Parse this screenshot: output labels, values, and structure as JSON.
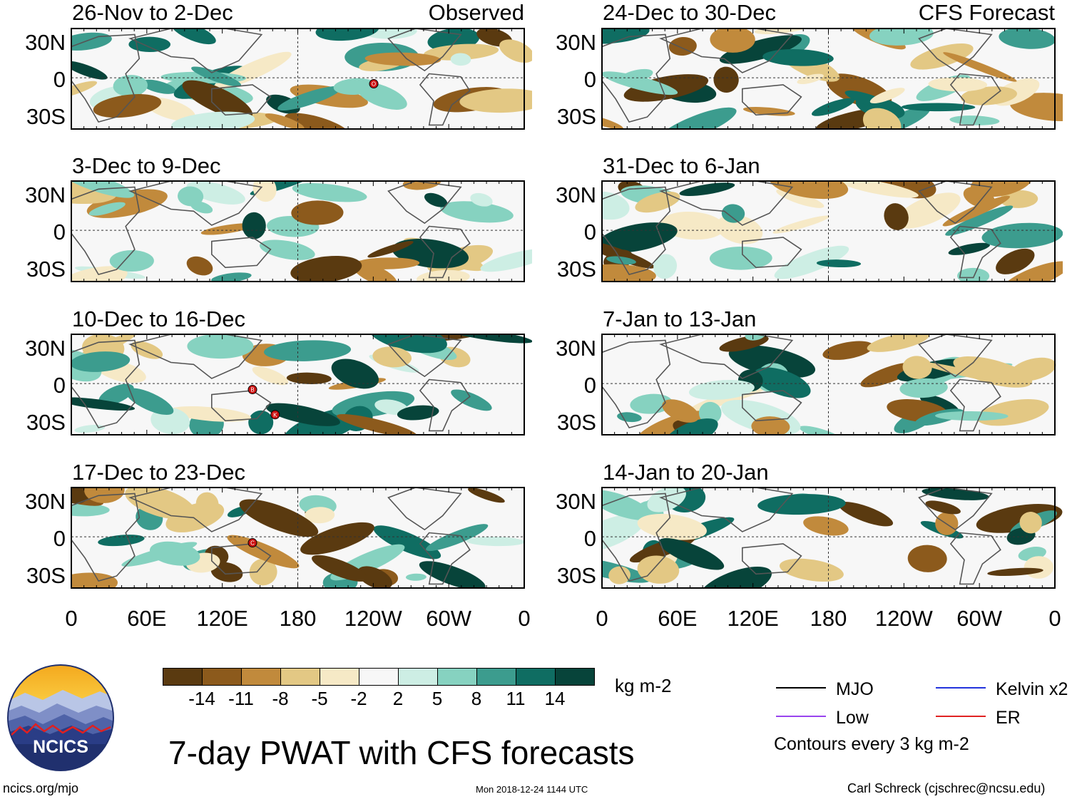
{
  "chart_data": {
    "type": "heatmap",
    "title": "7-day PWAT with CFS forecasts",
    "units": "kg m-2",
    "xlabels": [
      "0",
      "60E",
      "120E",
      "180",
      "120W",
      "60W",
      "0"
    ],
    "ylabels": [
      "30N",
      "0",
      "30S"
    ],
    "panels": [
      {
        "period": "26-Nov to 2-Dec",
        "type": "Observed",
        "column": "left",
        "row": 0,
        "storms": [
          "O"
        ]
      },
      {
        "period": "3-Dec to 9-Dec",
        "type": "Observed",
        "column": "left",
        "row": 1,
        "storms": []
      },
      {
        "period": "10-Dec to 16-Dec",
        "type": "Observed",
        "column": "left",
        "row": 2,
        "storms": [
          "B",
          "K"
        ]
      },
      {
        "period": "17-Dec to 23-Dec",
        "type": "Observed",
        "column": "left",
        "row": 3,
        "storms": [
          "C"
        ]
      },
      {
        "period": "24-Dec to 30-Dec",
        "type": "CFS Forecast",
        "column": "right",
        "row": 0,
        "storms": []
      },
      {
        "period": "31-Dec to 6-Jan",
        "type": "CFS Forecast",
        "column": "right",
        "row": 1,
        "storms": []
      },
      {
        "period": "7-Jan to 13-Jan",
        "type": "CFS Forecast",
        "column": "right",
        "row": 2,
        "storms": []
      },
      {
        "period": "14-Jan to 20-Jan",
        "type": "CFS Forecast",
        "column": "right",
        "row": 3,
        "storms": []
      }
    ],
    "observed_label": "Observed",
    "forecast_label": "CFS Forecast",
    "colorbar": {
      "colors": [
        "#5a3a10",
        "#8c5a1c",
        "#c18a3c",
        "#e3c884",
        "#f6e9c6",
        "#f7f7f7",
        "#cdeee4",
        "#86d2c0",
        "#3c9c8e",
        "#0f6d62",
        "#07443a"
      ],
      "ticks": [
        "-14",
        "-11",
        "-8",
        "-5",
        "-2",
        "2",
        "5",
        "8",
        "11",
        "14"
      ],
      "units": "kg m-2"
    },
    "legend": [
      {
        "label": "MJO",
        "color": "#000000"
      },
      {
        "label": "Kelvin x2",
        "color": "#2233dd"
      },
      {
        "label": "Low",
        "color": "#9944ee"
      },
      {
        "label": "ER",
        "color": "#e02222"
      }
    ],
    "contour_note": "Contours every 3 kg m-2"
  },
  "footer": {
    "logo_text": "NCICS",
    "url": "ncics.org/mjo",
    "timestamp": "Mon 2018-12-24 1144 UTC",
    "author": "Carl Schreck (cjschrec@ncsu.edu)"
  }
}
